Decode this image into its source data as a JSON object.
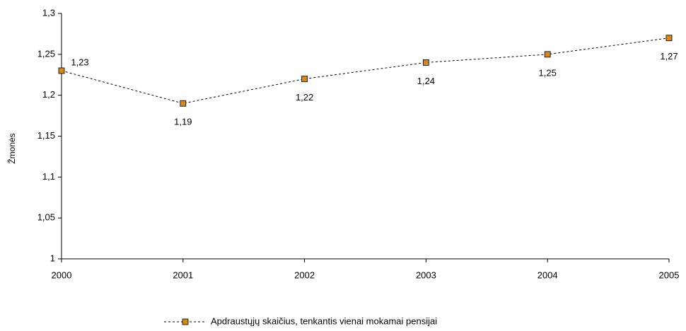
{
  "chart_data": {
    "type": "line",
    "ylabel": "Žmonės",
    "x": [
      2000,
      2001,
      2002,
      2003,
      2004,
      2005
    ],
    "xlim": [
      2000,
      2005
    ],
    "xticks": [
      2000,
      2001,
      2002,
      2003,
      2004,
      2005
    ],
    "ylim": [
      1,
      1.3
    ],
    "yticks": [
      1,
      {
        "value": 1.05,
        "label": "1,05"
      },
      {
        "value": 1.1,
        "label": "1,1"
      },
      {
        "value": 1.15,
        "label": "1,15"
      },
      {
        "value": 1.2,
        "label": "1,2"
      },
      {
        "value": 1.25,
        "label": "1,25"
      },
      {
        "value": 1.3,
        "label": "1,3"
      }
    ],
    "series": [
      {
        "name": "Apdraustųjų skaičius, tenkantis vienai mokamai pensijai",
        "color": "#d4891c",
        "values": [
          1.23,
          1.19,
          1.22,
          1.24,
          1.25,
          1.27
        ],
        "value_labels": [
          "1,23",
          "1,19",
          "1,22",
          "1,24",
          "1,25",
          "1,27"
        ]
      }
    ]
  }
}
